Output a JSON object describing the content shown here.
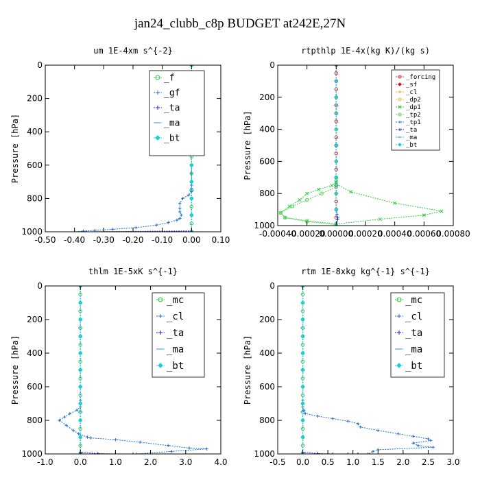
{
  "figure": {
    "title": "jan24_clubb_c8p  BUDGET at242E,27N"
  },
  "chart_data": [
    {
      "type": "line",
      "title": "um   1E-4xm s^{-2}",
      "xlabel": "",
      "ylabel": "Pressure [hPa]",
      "xlim": [
        -0.5,
        0.1
      ],
      "ylim": [
        1000,
        0
      ],
      "y_inverted": true,
      "xticks": [
        -0.5,
        -0.4,
        -0.3,
        -0.2,
        -0.1,
        0.0,
        0.1
      ],
      "xtick_labels": [
        "-0.50",
        "-0.40",
        "-0.30",
        "-0.20",
        "-0.10",
        "0.00",
        "0.10"
      ],
      "yticks": [
        0,
        200,
        400,
        600,
        800,
        1000
      ],
      "ytick_labels": [
        "0",
        "200",
        "400",
        "600",
        "800",
        "1000"
      ],
      "legend_position": "top-right",
      "series": [
        {
          "name": "_f",
          "color": "#2ecc40",
          "marker": "o",
          "x": [
            0,
            0,
            0,
            0,
            0,
            0,
            0,
            0,
            0,
            0,
            0,
            0,
            0,
            0,
            0,
            0,
            0,
            0,
            0,
            0,
            0
          ],
          "y": [
            0,
            50,
            100,
            150,
            200,
            250,
            300,
            350,
            400,
            450,
            500,
            550,
            600,
            650,
            700,
            750,
            800,
            850,
            900,
            950,
            1000
          ]
        },
        {
          "name": "_gf",
          "color": "#1f6fd1",
          "marker": "+",
          "x": [
            0,
            0,
            0,
            0,
            0,
            0,
            -0.01,
            -0.03,
            -0.04,
            -0.04,
            -0.04,
            -0.035,
            -0.04,
            -0.05,
            -0.08,
            -0.12,
            -0.19,
            -0.27,
            -0.33,
            -0.37,
            -0.4
          ],
          "y": [
            600,
            650,
            700,
            720,
            740,
            760,
            780,
            800,
            830,
            860,
            880,
            900,
            920,
            930,
            945,
            960,
            975,
            985,
            992,
            996,
            1000
          ]
        },
        {
          "name": "_ta",
          "color": "#1a1ad6",
          "marker": "+",
          "x": [
            0,
            0,
            0,
            0,
            -0.36
          ],
          "y": [
            0,
            400,
            800,
            995,
            1000
          ]
        },
        {
          "name": "_ma",
          "color": "#3fa8d8",
          "marker": "-",
          "x": [
            0,
            0,
            0,
            0,
            0
          ],
          "y": [
            0,
            250,
            500,
            750,
            1000
          ]
        },
        {
          "name": "_bt",
          "color": "#16d0e0",
          "marker": "D",
          "x": [
            0,
            0,
            0,
            0,
            0,
            0,
            0,
            0,
            0,
            0,
            0
          ],
          "y": [
            0,
            100,
            200,
            300,
            400,
            500,
            600,
            700,
            800,
            900,
            1000
          ]
        }
      ]
    },
    {
      "type": "line",
      "title": "rtpthlp   1E-4x(kg K)/(kg s)",
      "xlabel": "",
      "ylabel": "Pressure [hPa]",
      "xlim": [
        -0.0004,
        0.0008
      ],
      "ylim": [
        1000,
        0
      ],
      "y_inverted": true,
      "xticks": [
        -0.0004,
        -0.0002,
        0.0,
        0.0002,
        0.0004,
        0.0006,
        0.0008
      ],
      "xtick_labels": [
        "-0.00040",
        "-0.00020",
        "0.00000",
        "0.00020",
        "0.00040",
        "0.00060",
        "0.00080"
      ],
      "yticks": [
        0,
        200,
        400,
        600,
        800,
        1000
      ],
      "ytick_labels": [
        "0",
        "200",
        "400",
        "600",
        "800",
        "1000"
      ],
      "legend_position": "top-right",
      "series": [
        {
          "name": "_forcing",
          "color": "#e52222",
          "marker": "o",
          "x": [
            0,
            0,
            0,
            0,
            0,
            0,
            0,
            0,
            0,
            0,
            0,
            0,
            0,
            0,
            0,
            0,
            0,
            0,
            0,
            0,
            0
          ],
          "y": [
            0,
            50,
            100,
            150,
            200,
            250,
            300,
            350,
            400,
            450,
            500,
            550,
            600,
            650,
            700,
            750,
            800,
            850,
            900,
            950,
            1000
          ]
        },
        {
          "name": "_sf",
          "color": "#d01010",
          "marker": "D",
          "x": [
            0,
            0,
            0,
            0,
            0,
            0,
            0,
            0,
            0,
            0,
            0
          ],
          "y": [
            0,
            100,
            200,
            300,
            400,
            500,
            600,
            700,
            800,
            900,
            1000
          ]
        },
        {
          "name": "_cl",
          "color": "#f0a020",
          "marker": "+",
          "x": [
            0,
            0,
            0,
            0,
            0,
            0
          ],
          "y": [
            0,
            200,
            400,
            600,
            800,
            1000
          ]
        },
        {
          "name": "_dp2",
          "color": "#e0c020",
          "marker": "o",
          "x": [
            0,
            0,
            0,
            0,
            0,
            0
          ],
          "y": [
            0,
            200,
            400,
            600,
            800,
            1000
          ]
        },
        {
          "name": "_dp1",
          "color": "#2ecc40",
          "marker": "x",
          "x": [
            0,
            0,
            -3e-05,
            -0.00012,
            -0.0002,
            -0.00025,
            -0.00032,
            -0.00038,
            -0.00035,
            -0.0002,
            0.0,
            0.0003,
            0.0006,
            0.00072,
            0.0004,
            0.0001,
            0.0
          ],
          "y": [
            700,
            730,
            750,
            775,
            800,
            840,
            880,
            920,
            950,
            970,
            990,
            960,
            935,
            910,
            860,
            790,
            740
          ]
        },
        {
          "name": "_tp2",
          "color": "#4fd64f",
          "marker": "o",
          "x": [
            0,
            0,
            -0.0001,
            -0.0002,
            -0.0003,
            -0.00038,
            -0.00035,
            -0.0002,
            0.0,
            0.0
          ],
          "y": [
            720,
            760,
            800,
            840,
            880,
            920,
            950,
            975,
            995,
            1000
          ]
        },
        {
          "name": "_tp1",
          "color": "#1f6fd1",
          "marker": "+",
          "x": [
            0,
            0,
            0,
            5e-06,
            1e-05,
            0.0
          ],
          "y": [
            0,
            500,
            900,
            930,
            950,
            1000
          ]
        },
        {
          "name": "_ta",
          "color": "#1a1ad6",
          "marker": "+",
          "x": [
            0,
            0,
            0,
            1e-05,
            0.0
          ],
          "y": [
            0,
            600,
            900,
            960,
            1000
          ]
        },
        {
          "name": "_ma",
          "color": "#3fa8d8",
          "marker": "-",
          "x": [
            0,
            0,
            0,
            0,
            0
          ],
          "y": [
            0,
            250,
            500,
            750,
            1000
          ]
        },
        {
          "name": "_bt",
          "color": "#16d0e0",
          "marker": "D",
          "x": [
            0,
            0,
            0,
            0,
            0,
            0,
            0,
            0,
            0,
            0,
            0
          ],
          "y": [
            0,
            100,
            200,
            300,
            400,
            500,
            600,
            700,
            800,
            900,
            1000
          ]
        }
      ]
    },
    {
      "type": "line",
      "title": "thlm   1E-5xK s^{-1}",
      "xlabel": "",
      "ylabel": "Pressure [hPa]",
      "xlim": [
        -1.0,
        4.0
      ],
      "ylim": [
        1000,
        0
      ],
      "y_inverted": true,
      "xticks": [
        -1.0,
        0.0,
        1.0,
        2.0,
        3.0,
        4.0
      ],
      "xtick_labels": [
        "-1.0",
        "0.0",
        "1.0",
        "2.0",
        "3.0",
        "4.0"
      ],
      "yticks": [
        0,
        200,
        400,
        600,
        800,
        1000
      ],
      "ytick_labels": [
        "0",
        "200",
        "400",
        "600",
        "800",
        "1000"
      ],
      "legend_position": "top-right",
      "series": [
        {
          "name": "_mc",
          "color": "#2ecc40",
          "marker": "o",
          "x": [
            0,
            0,
            0,
            0,
            0,
            0,
            0,
            0,
            0,
            0,
            0,
            0,
            0,
            0,
            0,
            0,
            0,
            0,
            0,
            0,
            0
          ],
          "y": [
            0,
            50,
            100,
            150,
            200,
            250,
            300,
            350,
            400,
            450,
            500,
            550,
            600,
            650,
            700,
            750,
            800,
            850,
            900,
            950,
            1000
          ]
        },
        {
          "name": "_cl",
          "color": "#1f6fd1",
          "marker": "+",
          "x": [
            0,
            0,
            0,
            -0.1,
            -0.3,
            -0.45,
            -0.6,
            -0.4,
            -0.2,
            -0.05,
            0.2,
            0.3,
            1.0,
            1.7,
            2.5,
            3.1,
            3.6,
            2.6,
            1.6
          ],
          "y": [
            600,
            680,
            720,
            740,
            760,
            780,
            800,
            830,
            860,
            880,
            900,
            905,
            915,
            930,
            950,
            965,
            970,
            985,
            1000
          ]
        },
        {
          "name": "_ta",
          "color": "#1a1ad6",
          "marker": "+",
          "x": [
            0,
            0,
            0,
            0.5,
            1.0,
            1.5
          ],
          "y": [
            0,
            500,
            990,
            998,
            1000,
            1000
          ]
        },
        {
          "name": "_ma",
          "color": "#3fa8d8",
          "marker": "-",
          "x": [
            0,
            0,
            0,
            0,
            0
          ],
          "y": [
            0,
            250,
            500,
            750,
            1000
          ]
        },
        {
          "name": "_bt",
          "color": "#16d0e0",
          "marker": "D",
          "x": [
            0,
            0,
            0,
            0,
            0,
            0,
            0,
            0,
            0,
            0,
            0
          ],
          "y": [
            0,
            100,
            200,
            300,
            400,
            500,
            600,
            700,
            800,
            900,
            1000
          ]
        }
      ]
    },
    {
      "type": "line",
      "title": "rtm   1E-8xkg kg^{-1} s^{-1}",
      "xlabel": "",
      "ylabel": "Pressure [hPa]",
      "xlim": [
        -0.5,
        3.0
      ],
      "ylim": [
        1000,
        0
      ],
      "y_inverted": true,
      "xticks": [
        -0.5,
        0.0,
        0.5,
        1.0,
        1.5,
        2.0,
        2.5,
        3.0
      ],
      "xtick_labels": [
        "-0.5",
        "0.0",
        "0.5",
        "1.0",
        "1.5",
        "2.0",
        "2.5",
        "3.0"
      ],
      "yticks": [
        0,
        200,
        400,
        600,
        800,
        1000
      ],
      "ytick_labels": [
        "0",
        "200",
        "400",
        "600",
        "800",
        "1000"
      ],
      "legend_position": "top-right",
      "series": [
        {
          "name": "_mc",
          "color": "#2ecc40",
          "marker": "o",
          "x": [
            0,
            0,
            0,
            0,
            0,
            0,
            0,
            0,
            0,
            0,
            0,
            0,
            0,
            0,
            0,
            0,
            0,
            0,
            0,
            0,
            0
          ],
          "y": [
            0,
            50,
            100,
            150,
            200,
            250,
            300,
            350,
            400,
            450,
            500,
            550,
            600,
            650,
            700,
            750,
            800,
            850,
            900,
            950,
            1000
          ]
        },
        {
          "name": "_cl",
          "color": "#1f6fd1",
          "marker": "+",
          "x": [
            0,
            0,
            0,
            0.02,
            0.05,
            0.3,
            0.6,
            0.9,
            1.1,
            1.15,
            1.5,
            1.9,
            2.2,
            2.5,
            2.55,
            2.2,
            2.3,
            2.6,
            1.5,
            1.4,
            1.3
          ],
          "y": [
            600,
            680,
            720,
            740,
            760,
            775,
            790,
            805,
            820,
            840,
            860,
            880,
            895,
            910,
            920,
            935,
            950,
            960,
            975,
            985,
            1000
          ]
        },
        {
          "name": "_ta",
          "color": "#1a1ad6",
          "marker": "+",
          "x": [
            0,
            0,
            0,
            0.3,
            0.6,
            0.9,
            1.1
          ],
          "y": [
            0,
            500,
            990,
            998,
            1000,
            1000,
            1000
          ]
        },
        {
          "name": "_ma",
          "color": "#3fa8d8",
          "marker": "-",
          "x": [
            0,
            0,
            0,
            0,
            0
          ],
          "y": [
            0,
            250,
            500,
            750,
            1000
          ]
        },
        {
          "name": "_bt",
          "color": "#16d0e0",
          "marker": "D",
          "x": [
            0,
            0,
            0,
            0,
            0,
            0,
            0,
            0,
            0,
            0,
            0
          ],
          "y": [
            0,
            100,
            200,
            300,
            400,
            500,
            600,
            700,
            800,
            900,
            1000
          ]
        }
      ]
    }
  ]
}
